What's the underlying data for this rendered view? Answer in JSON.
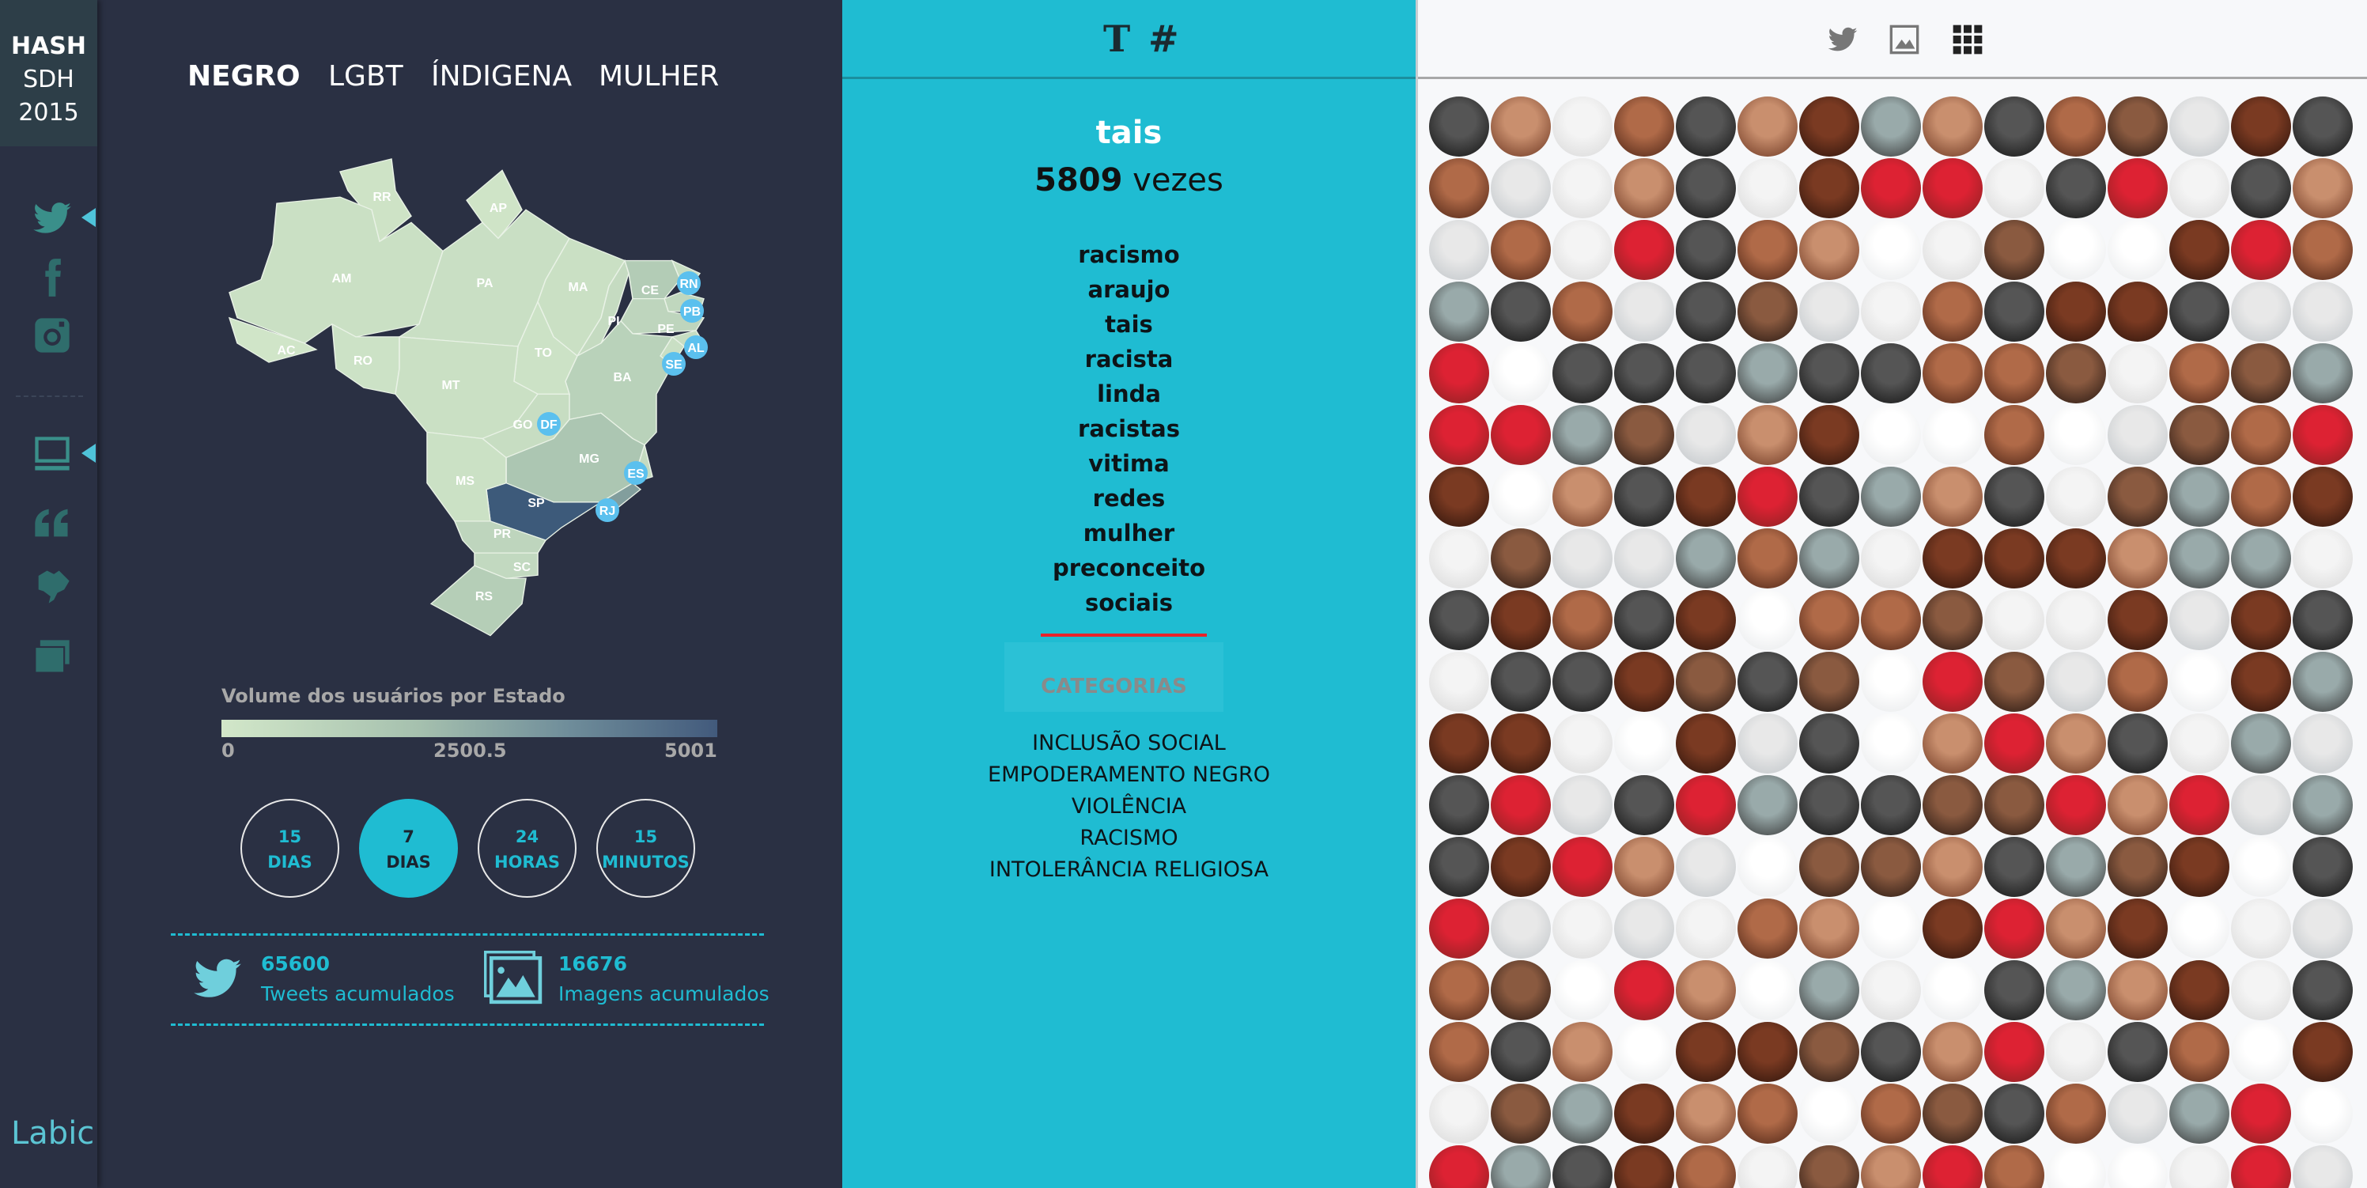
{
  "brand": {
    "line1": "HASH",
    "line2": "SDH",
    "line3": "2015"
  },
  "sidebar": {
    "icons": [
      "twitter-icon",
      "facebook-icon",
      "instagram-icon",
      "monitor-icon",
      "quote-icon",
      "brazil-map-icon",
      "images-icon"
    ],
    "footer": "Labic"
  },
  "tabs": [
    {
      "label": "NEGRO",
      "active": true
    },
    {
      "label": "LGBT"
    },
    {
      "label": "ÍNDIGENA"
    },
    {
      "label": "MULHER"
    }
  ],
  "map": {
    "states": [
      {
        "id": "RR",
        "value": 200
      },
      {
        "id": "AP",
        "value": 150
      },
      {
        "id": "AM",
        "value": 350
      },
      {
        "id": "PA",
        "value": 400
      },
      {
        "id": "MA",
        "value": 350
      },
      {
        "id": "PI",
        "value": 600
      },
      {
        "id": "CE",
        "value": 1400
      },
      {
        "id": "RN",
        "value": 500
      },
      {
        "id": "PB",
        "value": 800
      },
      {
        "id": "PE",
        "value": 900
      },
      {
        "id": "AL",
        "value": 500
      },
      {
        "id": "SE",
        "value": 400
      },
      {
        "id": "BA",
        "value": 1100
      },
      {
        "id": "AC",
        "value": 100
      },
      {
        "id": "RO",
        "value": 250
      },
      {
        "id": "TO",
        "value": 250
      },
      {
        "id": "MT",
        "value": 350
      },
      {
        "id": "GO",
        "value": 500
      },
      {
        "id": "DF",
        "value": 700
      },
      {
        "id": "MG",
        "value": 1700
      },
      {
        "id": "ES",
        "value": 600
      },
      {
        "id": "RJ",
        "value": 3000
      },
      {
        "id": "SP",
        "value": 5001
      },
      {
        "id": "MS",
        "value": 300
      },
      {
        "id": "PR",
        "value": 900
      },
      {
        "id": "SC",
        "value": 700
      },
      {
        "id": "RS",
        "value": 1300
      }
    ],
    "highlighted": [
      "RN",
      "PB",
      "AL",
      "SE",
      "DF",
      "ES",
      "RJ"
    ]
  },
  "legend": {
    "title": "Volume dos usuários por Estado",
    "min": "0",
    "mid": "2500.5",
    "max": "5001"
  },
  "periods": [
    {
      "num": "15",
      "unit": "DIAS"
    },
    {
      "num": "7",
      "unit": "DIAS",
      "active": true
    },
    {
      "num": "24",
      "unit": "HORAS"
    },
    {
      "num": "15",
      "unit": "MINUTOS"
    }
  ],
  "stats": {
    "tweets": {
      "value": "65600",
      "label": "Tweets acumulados"
    },
    "images": {
      "value": "16676",
      "label": "Imagens acumulados"
    }
  },
  "middle": {
    "header_icons": [
      "text-icon",
      "hashtag-icon"
    ],
    "term": "tais",
    "count": "5809",
    "count_unit": "vezes",
    "words": [
      "racismo",
      "araujo",
      "tais",
      "racista",
      "linda",
      "racistas",
      "vitima",
      "redes",
      "mulher",
      "preconceito",
      "sociais"
    ],
    "categories_label": "CATEGORIAS",
    "categories": [
      "INCLUSÃO SOCIAL",
      "EMPODERAMENTO NEGRO",
      "VIOLÊNCIA",
      "RACISMO",
      "INTOLERÂNCIA RELIGIOSA"
    ]
  },
  "right": {
    "header_icons": [
      "twitter-icon",
      "image-icon",
      "grid-icon"
    ]
  },
  "colors": {
    "accent": "#1fbcd2",
    "panel": "#2a3043",
    "alert": "#e8232a"
  }
}
